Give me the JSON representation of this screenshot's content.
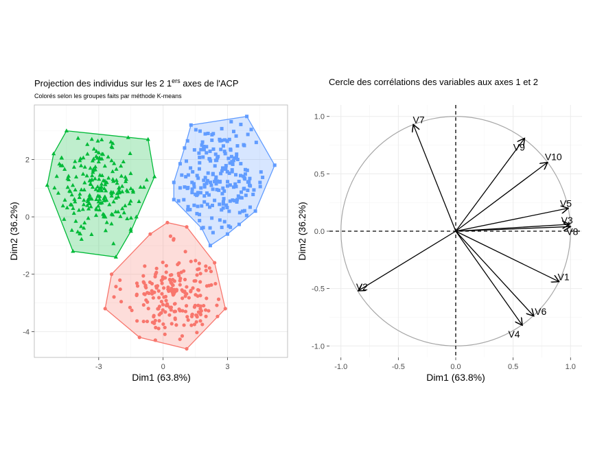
{
  "colors": {
    "cluster1": "#F8766D",
    "cluster2": "#00BA38",
    "cluster3": "#619CFF"
  },
  "chart_data": [
    {
      "type": "scatter",
      "title": "Projection des individus sur les 2 1",
      "title_superscript": "ers",
      "title_suffix": " axes de l'ACP",
      "subtitle": "Colorés selon les groupes faits par méthode K-means",
      "xlabel": "Dim1 (63.8%)",
      "ylabel": "Dim2 (36.2%)",
      "xlim": [
        -6.0,
        5.8
      ],
      "ylim": [
        -4.9,
        3.9
      ],
      "xticks": [
        -3,
        0,
        3
      ],
      "yticks": [
        -4,
        -2,
        0,
        2
      ],
      "xtick_labels": [
        "-3",
        "0",
        "3"
      ],
      "ytick_labels": [
        "-4",
        "-2",
        "0",
        "2"
      ],
      "grid": true,
      "groups": [
        {
          "id": "cluster1",
          "marker": "circle",
          "center": [
            0.5,
            -2.7
          ],
          "spread": [
            1.15,
            0.75
          ],
          "n": 210,
          "hull": [
            [
              -2.7,
              -3.2
            ],
            [
              -2.4,
              -2.0
            ],
            [
              -0.6,
              -0.6
            ],
            [
              0.2,
              -0.2
            ],
            [
              1.1,
              -0.35
            ],
            [
              2.4,
              -1.6
            ],
            [
              2.9,
              -3.2
            ],
            [
              1.1,
              -4.6
            ],
            [
              -1.1,
              -4.2
            ]
          ]
        },
        {
          "id": "cluster2",
          "marker": "triangle",
          "center": [
            -3.0,
            1.0
          ],
          "spread": [
            1.2,
            0.9
          ],
          "n": 210,
          "hull": [
            [
              -5.4,
              1.1
            ],
            [
              -5.1,
              2.2
            ],
            [
              -4.5,
              3.0
            ],
            [
              -0.7,
              2.7
            ],
            [
              -0.4,
              1.4
            ],
            [
              -1.5,
              -0.5
            ],
            [
              -2.2,
              -1.4
            ],
            [
              -4.2,
              -1.2
            ]
          ]
        },
        {
          "id": "cluster3",
          "marker": "square",
          "center": [
            2.6,
            1.4
          ],
          "spread": [
            1.15,
            0.95
          ],
          "n": 210,
          "hull": [
            [
              1.3,
              3.2
            ],
            [
              3.9,
              3.5
            ],
            [
              5.2,
              1.8
            ],
            [
              4.3,
              0.2
            ],
            [
              3.0,
              -0.6
            ],
            [
              2.2,
              -1.0
            ],
            [
              1.8,
              -0.4
            ],
            [
              0.5,
              0.6
            ],
            [
              0.5,
              1.2
            ],
            [
              1.0,
              2.4
            ]
          ]
        }
      ]
    },
    {
      "type": "line",
      "title": "Cercle des corrélations des variables aux axes 1 et 2",
      "xlabel": "Dim1 (63.8%)",
      "ylabel": "Dim2 (36.2%)",
      "xlim": [
        -1.1,
        1.1
      ],
      "ylim": [
        -1.1,
        1.1
      ],
      "xticks": [
        -1.0,
        -0.5,
        0.0,
        0.5,
        1.0
      ],
      "yticks": [
        -1.0,
        -0.5,
        0.0,
        0.5,
        1.0
      ],
      "xtick_labels": [
        "-1.0",
        "-0.5",
        "0.0",
        "0.5",
        "1.0"
      ],
      "ytick_labels": [
        "-1.0",
        "-0.5",
        "0.0",
        "0.5",
        "1.0"
      ],
      "grid": true,
      "unit_circle": true,
      "variables": [
        {
          "name": "V1",
          "x": 0.9,
          "y": -0.44
        },
        {
          "name": "V2",
          "x": -0.85,
          "y": -0.52
        },
        {
          "name": "V3",
          "x": 0.99,
          "y": 0.06
        },
        {
          "name": "V4",
          "x": 0.58,
          "y": -0.82
        },
        {
          "name": "V5",
          "x": 0.98,
          "y": 0.2
        },
        {
          "name": "V6",
          "x": 0.68,
          "y": -0.74
        },
        {
          "name": "V7",
          "x": -0.37,
          "y": 0.93
        },
        {
          "name": "V8",
          "x": 1.0,
          "y": 0.04
        },
        {
          "name": "V9",
          "x": 0.6,
          "y": 0.81
        },
        {
          "name": "V10",
          "x": 0.8,
          "y": 0.6
        }
      ]
    }
  ]
}
